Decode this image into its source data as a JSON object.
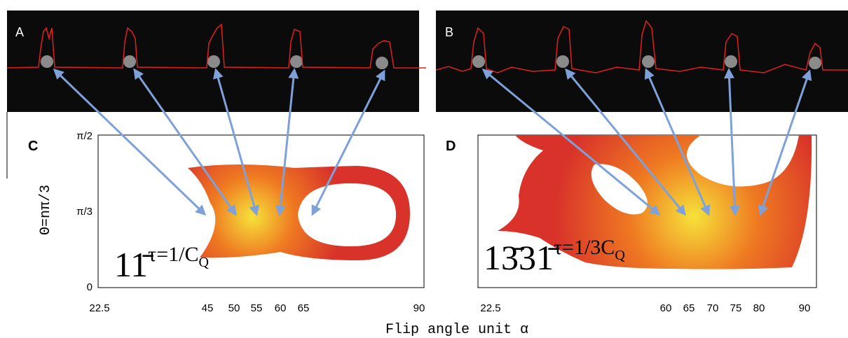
{
  "panels": {
    "a": "A",
    "b": "B",
    "c": "C",
    "d": "D"
  },
  "y_axis": {
    "label": "Θ=nπ/3",
    "ticks": [
      "π/2",
      "π/3",
      "0"
    ]
  },
  "x_axis": {
    "label": "Flip angle unit α"
  },
  "plot_c": {
    "xticks": [
      "22.5",
      "45",
      "50",
      "55",
      "60",
      "65",
      "90"
    ],
    "formula": {
      "base": "11̄",
      "exponent": "τ=1/C",
      "subscript": "Q"
    }
  },
  "plot_d": {
    "xticks": [
      "22.5",
      "60",
      "65",
      "70",
      "75",
      "80",
      "90"
    ],
    "formula": {
      "base": "13̄31̄",
      "exponent": "τ=1/3C",
      "subscript": "Q"
    }
  }
}
